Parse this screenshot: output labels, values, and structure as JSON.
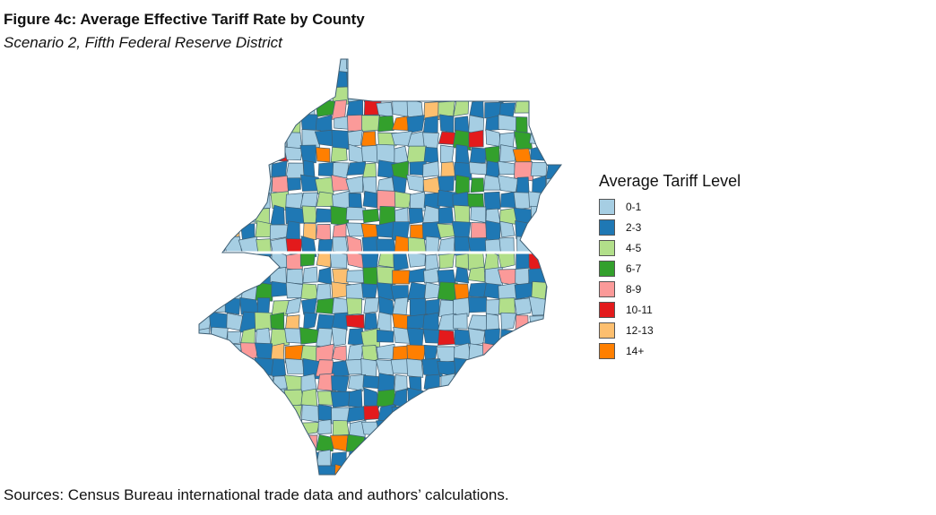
{
  "title": "Figure 4c: Average Effective Tariff Rate by County",
  "subtitle": "Scenario 2, Fifth Federal Reserve District",
  "source": "Sources: Census Bureau international trade data and authors’ calculations.",
  "legend": {
    "title": "Average Tariff Level",
    "items": [
      {
        "label": "0-1",
        "color": "#a6cee3"
      },
      {
        "label": "2-3",
        "color": "#1f78b4"
      },
      {
        "label": "4-5",
        "color": "#b2df8a"
      },
      {
        "label": "6-7",
        "color": "#33a02c"
      },
      {
        "label": "8-9",
        "color": "#fb9a99"
      },
      {
        "label": "10-11",
        "color": "#e31a1c"
      },
      {
        "label": "12-13",
        "color": "#fdbf6f"
      },
      {
        "label": "14+",
        "color": "#ff7f00"
      }
    ]
  },
  "map": {
    "region": "Fifth Federal Reserve District",
    "border_color": "#3f5f74"
  }
}
